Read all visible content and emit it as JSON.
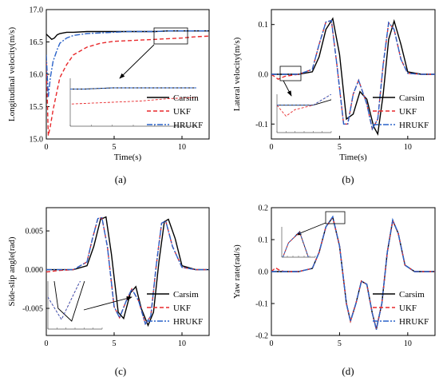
{
  "series_styles": [
    {
      "name": "Carsim",
      "color": "#000000",
      "dash": ""
    },
    {
      "name": "UKF",
      "color": "#e8282b",
      "dash": "5,3"
    },
    {
      "name": "HRUKF",
      "color": "#2a62c9",
      "dash": "7,2,2,2"
    }
  ],
  "chart_data": [
    {
      "type": "line",
      "caption": "(a)",
      "xlabel": "Time(s)",
      "ylabel": "Longitudinal velocity(m/s)",
      "xlim": [
        0,
        12
      ],
      "ylim": [
        15.0,
        17.0
      ],
      "xticks": [
        0,
        5,
        10
      ],
      "yticks": [
        15.0,
        15.5,
        16.0,
        16.5,
        17.0
      ],
      "ytick_labels": [
        "15.0",
        "15.5",
        "16.0",
        "16.5",
        "17.0"
      ],
      "legend": "bottom-right",
      "series": [
        {
          "name": "Carsim",
          "x": [
            0,
            0.2,
            0.4,
            0.6,
            0.8,
            1.0,
            1.5,
            2,
            3,
            4,
            5,
            6,
            7,
            8,
            9,
            10,
            11,
            12
          ],
          "y": [
            16.62,
            16.58,
            16.54,
            16.56,
            16.61,
            16.63,
            16.65,
            16.65,
            16.66,
            16.66,
            16.66,
            16.66,
            16.66,
            16.66,
            16.67,
            16.67,
            16.67,
            16.67
          ]
        },
        {
          "name": "UKF",
          "x": [
            0,
            0.15,
            0.3,
            0.5,
            0.8,
            1.0,
            1.5,
            2,
            3,
            4,
            5,
            6,
            7,
            8,
            9,
            10,
            11,
            12
          ],
          "y": [
            16.2,
            15.05,
            15.2,
            15.45,
            15.75,
            15.95,
            16.15,
            16.3,
            16.42,
            16.48,
            16.51,
            16.52,
            16.53,
            16.54,
            16.55,
            16.56,
            16.58,
            16.59
          ]
        },
        {
          "name": "HRUKF",
          "x": [
            0,
            0.15,
            0.3,
            0.5,
            0.8,
            1.0,
            1.5,
            2,
            3,
            4,
            5,
            6,
            7,
            8,
            9,
            10,
            11,
            12
          ],
          "y": [
            16.3,
            15.65,
            15.95,
            16.2,
            16.38,
            16.48,
            16.56,
            16.6,
            16.63,
            16.64,
            16.65,
            16.66,
            16.66,
            16.66,
            16.67,
            16.67,
            16.67,
            16.67
          ]
        }
      ]
    },
    {
      "type": "line",
      "caption": "(b)",
      "xlabel": "Time(s)",
      "ylabel": "Lateral velocity(m/s)",
      "xlim": [
        0,
        12
      ],
      "ylim": [
        -0.13,
        0.13
      ],
      "xticks": [
        0,
        5,
        10
      ],
      "yticks": [
        -0.1,
        0.0,
        0.1
      ],
      "ytick_labels": [
        "-0.1",
        "0.0",
        "0.1"
      ],
      "legend": "bottom-right",
      "series": [
        {
          "name": "Carsim",
          "x": [
            0,
            2,
            3,
            3.5,
            4.0,
            4.5,
            5.0,
            5.5,
            6.0,
            6.5,
            7.0,
            7.5,
            7.8,
            8.2,
            8.6,
            9.0,
            9.5,
            10,
            11,
            12
          ],
          "y": [
            0,
            0,
            0.005,
            0.035,
            0.09,
            0.112,
            0.04,
            -0.09,
            -0.08,
            -0.035,
            -0.05,
            -0.105,
            -0.12,
            -0.04,
            0.07,
            0.107,
            0.06,
            0.005,
            0,
            0
          ]
        },
        {
          "name": "UKF",
          "x": [
            0,
            0.5,
            1.0,
            1.5,
            2,
            3,
            3.5,
            4.0,
            4.4,
            4.8,
            5.3,
            5.6,
            6.0,
            6.4,
            7.0,
            7.4,
            7.8,
            8.2,
            8.6,
            9.0,
            9.5,
            10,
            11,
            12
          ],
          "y": [
            0,
            -0.01,
            -0.004,
            -0.002,
            0,
            0.01,
            0.06,
            0.105,
            0.108,
            0.02,
            -0.1,
            -0.1,
            -0.04,
            -0.012,
            -0.06,
            -0.11,
            -0.09,
            0.02,
            0.103,
            0.09,
            0.03,
            0.002,
            0,
            0
          ]
        },
        {
          "name": "HRUKF",
          "x": [
            0,
            2,
            3,
            3.5,
            4.0,
            4.4,
            4.8,
            5.3,
            5.6,
            6.0,
            6.4,
            7.0,
            7.4,
            7.8,
            8.2,
            8.6,
            9.0,
            9.5,
            10,
            11,
            12
          ],
          "y": [
            0,
            0,
            0.01,
            0.06,
            0.105,
            0.108,
            0.02,
            -0.1,
            -0.1,
            -0.04,
            -0.012,
            -0.06,
            -0.11,
            -0.09,
            0.02,
            0.104,
            0.09,
            0.03,
            0.002,
            0,
            0
          ]
        }
      ]
    },
    {
      "type": "line",
      "caption": "(c)",
      "xlabel": "",
      "ylabel": "Side-slip angle(rad)",
      "xlim": [
        0,
        12
      ],
      "ylim": [
        -0.0085,
        0.008
      ],
      "xticks": [
        0,
        5,
        10
      ],
      "yticks": [
        -0.005,
        0.0,
        0.005
      ],
      "ytick_labels": [
        "-0.005",
        "0.000",
        "0.005"
      ],
      "legend": "bottom-right",
      "series": [
        {
          "name": "Carsim",
          "x": [
            0,
            2,
            3,
            3.5,
            4.0,
            4.4,
            4.8,
            5.3,
            5.7,
            6.2,
            6.6,
            7.0,
            7.5,
            7.9,
            8.3,
            8.7,
            9.0,
            9.5,
            10,
            11,
            12
          ],
          "y": [
            0,
            0,
            0.0005,
            0.003,
            0.0065,
            0.0068,
            0.002,
            -0.0055,
            -0.0063,
            -0.003,
            -0.0022,
            -0.005,
            -0.0072,
            -0.0055,
            0.001,
            0.0062,
            0.0065,
            0.004,
            0.0005,
            0,
            0
          ]
        },
        {
          "name": "UKF",
          "x": [
            0,
            1.0,
            2,
            3,
            3.4,
            3.8,
            4.1,
            4.5,
            5.0,
            5.4,
            5.9,
            6.3,
            6.8,
            7.3,
            7.7,
            8.1,
            8.5,
            8.8,
            9.3,
            10,
            11,
            12
          ],
          "y": [
            -0.0003,
            -0.0001,
            0,
            0.001,
            0.004,
            0.0066,
            0.0067,
            0.003,
            -0.0048,
            -0.0062,
            -0.004,
            -0.0025,
            -0.004,
            -0.007,
            -0.006,
            0.0005,
            0.006,
            0.0063,
            0.003,
            0.0003,
            0,
            0
          ]
        },
        {
          "name": "HRUKF",
          "x": [
            0,
            2,
            3,
            3.4,
            3.8,
            4.1,
            4.5,
            5.0,
            5.4,
            5.9,
            6.3,
            6.8,
            7.3,
            7.7,
            8.1,
            8.5,
            8.8,
            9.3,
            10,
            11,
            12
          ],
          "y": [
            0,
            0,
            0.001,
            0.004,
            0.0066,
            0.0067,
            0.003,
            -0.0048,
            -0.0062,
            -0.004,
            -0.0025,
            -0.004,
            -0.007,
            -0.006,
            0.0005,
            0.006,
            0.0063,
            0.003,
            0.0003,
            0,
            0
          ]
        }
      ]
    },
    {
      "type": "line",
      "caption": "(d)",
      "xlabel": "",
      "ylabel": "Yaw rate(rad/s)",
      "xlim": [
        0,
        12
      ],
      "ylim": [
        -0.2,
        0.2
      ],
      "xticks": [
        0,
        5,
        10
      ],
      "yticks": [
        -0.2,
        -0.1,
        0.0,
        0.1,
        0.2
      ],
      "ytick_labels": [
        "-0.2",
        "-0.1",
        "0.0",
        "0.1",
        "0.2"
      ],
      "legend": "bottom-right",
      "series": [
        {
          "name": "Carsim",
          "x": [
            0,
            2,
            3,
            3.5,
            4.0,
            4.5,
            5.0,
            5.5,
            5.8,
            6.2,
            6.6,
            7.0,
            7.4,
            7.7,
            8.1,
            8.5,
            8.9,
            9.3,
            9.8,
            10.5,
            11,
            12
          ],
          "y": [
            0,
            0,
            0.01,
            0.06,
            0.14,
            0.17,
            0.08,
            -0.1,
            -0.155,
            -0.1,
            -0.03,
            -0.04,
            -0.13,
            -0.18,
            -0.1,
            0.06,
            0.16,
            0.12,
            0.02,
            0,
            0,
            0
          ]
        },
        {
          "name": "UKF",
          "x": [
            0,
            0.3,
            0.6,
            1.0,
            2,
            3,
            3.5,
            4.0,
            4.5,
            5.0,
            5.5,
            5.8,
            6.2,
            6.6,
            7.0,
            7.4,
            7.7,
            8.1,
            8.5,
            8.9,
            9.3,
            9.8,
            10.5,
            11,
            12
          ],
          "y": [
            0,
            0.012,
            0.004,
            0,
            0,
            0.01,
            0.06,
            0.14,
            0.17,
            0.08,
            -0.1,
            -0.155,
            -0.1,
            -0.03,
            -0.04,
            -0.13,
            -0.18,
            -0.1,
            0.06,
            0.16,
            0.12,
            0.02,
            0,
            0,
            0
          ]
        },
        {
          "name": "HRUKF",
          "x": [
            0,
            2,
            3,
            3.5,
            4.0,
            4.5,
            5.0,
            5.5,
            5.8,
            6.2,
            6.6,
            7.0,
            7.4,
            7.7,
            8.1,
            8.5,
            8.9,
            9.3,
            9.8,
            10.5,
            11,
            12
          ],
          "y": [
            0,
            0,
            0.01,
            0.06,
            0.14,
            0.172,
            0.08,
            -0.1,
            -0.156,
            -0.1,
            -0.03,
            -0.04,
            -0.13,
            -0.182,
            -0.1,
            0.06,
            0.162,
            0.12,
            0.02,
            0,
            0,
            0
          ]
        }
      ]
    }
  ]
}
